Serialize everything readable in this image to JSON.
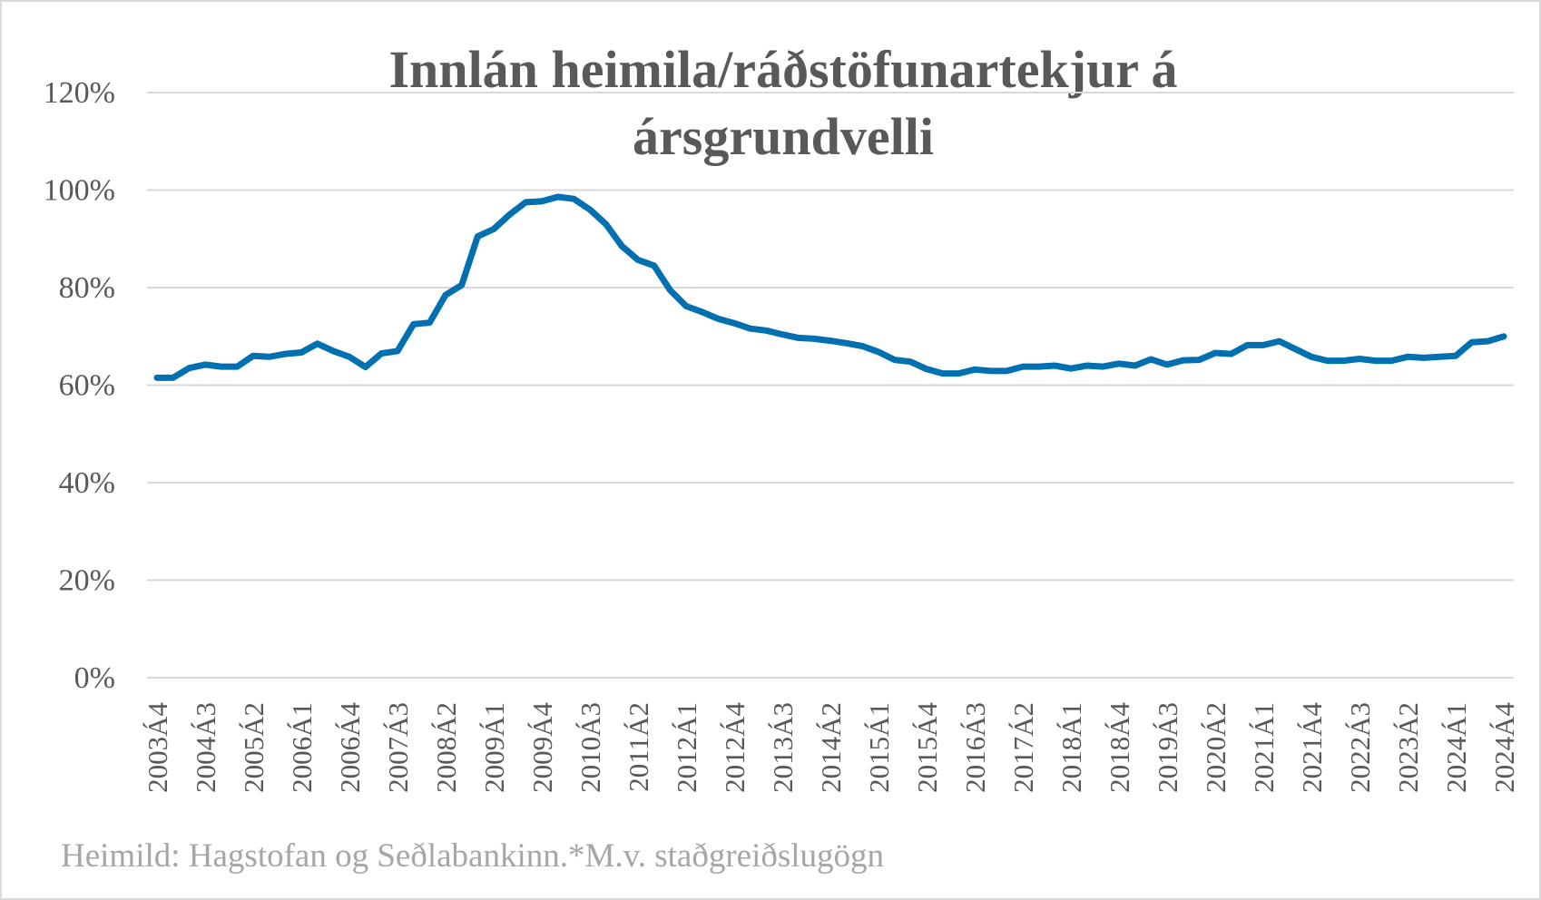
{
  "chart_data": {
    "type": "line",
    "title": [
      "Innlán heimila/ráðstöfunartekjur á",
      "ársgrundvelli"
    ],
    "source": "Heimild: Hagstofan og Seðlabankinn.*M.v. staðgreiðslugögn",
    "categories": [
      "2003Á4",
      null,
      null,
      "2004Á3",
      null,
      null,
      "2005Á2",
      null,
      null,
      "2006Á1",
      null,
      null,
      "2006Á4",
      null,
      null,
      "2007Á3",
      null,
      null,
      "2008Á2",
      null,
      null,
      "2009Á1",
      null,
      null,
      "2009Á4",
      null,
      null,
      "2010Á3",
      null,
      null,
      "2011Á2",
      null,
      null,
      "2012Á1",
      null,
      null,
      "2012Á4",
      null,
      null,
      "2013Á3",
      null,
      null,
      "2014Á2",
      null,
      null,
      "2015Á1",
      null,
      null,
      "2015Á4",
      null,
      null,
      "2016Á3",
      null,
      null,
      "2017Á2",
      null,
      null,
      "2018Á1",
      null,
      null,
      "2018Á4",
      null,
      null,
      "2019Á3",
      null,
      null,
      "2020Á2",
      null,
      null,
      "2021Á1",
      null,
      null,
      "2021Á4",
      null,
      null,
      "2022Á3",
      null,
      null,
      "2023Á2",
      null,
      null,
      "2024Á1",
      null,
      null,
      "2024Á4"
    ],
    "series": [
      {
        "name": "Innlán heimila/ráðstöfunartekjur",
        "color": "#0070b0",
        "values": [
          61.5,
          61.5,
          63.5,
          64.2,
          63.8,
          63.8,
          66,
          65.8,
          66.4,
          66.7,
          68.5,
          67,
          65.8,
          63.7,
          66.5,
          67,
          72.5,
          72.8,
          78.5,
          80.5,
          90.5,
          92,
          95,
          97.5,
          97.7,
          98.6,
          98.2,
          96,
          93,
          88.5,
          85.7,
          84.5,
          79.5,
          76.2,
          75,
          73.6,
          72.7,
          71.6,
          71.2,
          70.4,
          69.7,
          69.5,
          69.1,
          68.6,
          68,
          66.8,
          65.2,
          64.8,
          63.3,
          62.4,
          62.4,
          63.2,
          62.9,
          62.9,
          63.8,
          63.8,
          64,
          63.4,
          64,
          63.8,
          64.4,
          64,
          65.3,
          64.2,
          65.1,
          65.2,
          66.6,
          66.4,
          68.2,
          68.2,
          69,
          67.4,
          65.8,
          65,
          65,
          65.4,
          65,
          65,
          65.8,
          65.6,
          65.8,
          66,
          68.8,
          69,
          70
        ]
      }
    ],
    "ylim": [
      0,
      120
    ],
    "yticks": [
      {
        "value": 0,
        "label": "0%"
      },
      {
        "value": 20,
        "label": "20%"
      },
      {
        "value": 40,
        "label": "40%"
      },
      {
        "value": 60,
        "label": "60%"
      },
      {
        "value": 80,
        "label": "80%"
      },
      {
        "value": 100,
        "label": "100%"
      },
      {
        "value": 120,
        "label": "120%"
      }
    ],
    "grid": true
  }
}
